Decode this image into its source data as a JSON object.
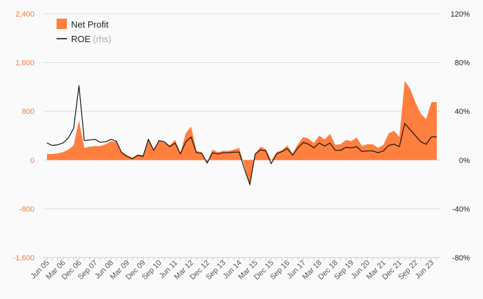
{
  "chart_data": {
    "type": "area",
    "legend": {
      "placement": "top-left",
      "net_profit": "Net Profit",
      "roe": "ROE",
      "roe_suffix": "(rhs)"
    },
    "colors": {
      "net_profit": "#ff7f3f",
      "roe": "#111111",
      "left_axis": "#f47a3a",
      "grid": "#dcdcdc"
    },
    "y_left": {
      "ylim": [
        -1600,
        2400
      ],
      "ticks": [
        -1600,
        -800,
        0,
        800,
        1600,
        2400
      ],
      "tick_labels": [
        "-1,600",
        "-800",
        "0",
        "800",
        "1,600",
        "2,400"
      ]
    },
    "y_right": {
      "ylim": [
        -80,
        120
      ],
      "ticks": [
        -80,
        -40,
        0,
        40,
        80,
        120
      ],
      "tick_labels": [
        "-80%",
        "-40%",
        "0%",
        "40%",
        "80%",
        "120%"
      ]
    },
    "x_tick_labels": [
      "Jun 05",
      "Mar 06",
      "Dec 06",
      "Sep 07",
      "Jun 08",
      "Mar 09",
      "Dec 09",
      "Sep 10",
      "Jun 11",
      "Mar 12",
      "Dec 12",
      "Sep 13",
      "Jun 14",
      "Mar 15",
      "Dec 15",
      "Sep 16",
      "Jun 17",
      "Mar 18",
      "Dec 18",
      "Sep 19",
      "Jun 20",
      "Mar 21",
      "Dec 21",
      "Sep 22",
      "Jun 23"
    ],
    "label_every": 3,
    "x": [
      "Jun 05",
      "Sep 05",
      "Dec 05",
      "Mar 06",
      "Jun 06",
      "Sep 06",
      "Dec 06",
      "Mar 07",
      "Jun 07",
      "Sep 07",
      "Dec 07",
      "Mar 08",
      "Jun 08",
      "Sep 08",
      "Dec 08",
      "Mar 09",
      "Jun 09",
      "Sep 09",
      "Dec 09",
      "Mar 10",
      "Jun 10",
      "Sep 10",
      "Dec 10",
      "Mar 11",
      "Jun 11",
      "Sep 11",
      "Dec 11",
      "Mar 12",
      "Jun 12",
      "Sep 12",
      "Dec 12",
      "Mar 13",
      "Jun 13",
      "Sep 13",
      "Dec 13",
      "Mar 14",
      "Jun 14",
      "Sep 14",
      "Dec 14",
      "Mar 15",
      "Jun 15",
      "Sep 15",
      "Dec 15",
      "Mar 16",
      "Jun 16",
      "Sep 16",
      "Dec 16",
      "Mar 17",
      "Jun 17",
      "Sep 17",
      "Dec 17",
      "Mar 18",
      "Jun 18",
      "Sep 18",
      "Dec 18",
      "Mar 19",
      "Jun 19",
      "Sep 19",
      "Dec 19",
      "Mar 20",
      "Jun 20",
      "Sep 20",
      "Dec 20",
      "Mar 21",
      "Jun 21",
      "Sep 21",
      "Dec 21",
      "Mar 22",
      "Jun 22",
      "Sep 22",
      "Dec 22",
      "Mar 23",
      "Jun 23",
      "Sep 23"
    ],
    "series": [
      {
        "name": "Net Profit",
        "axis": "left",
        "kind": "area",
        "values": [
          100,
          100,
          110,
          130,
          170,
          240,
          650,
          200,
          220,
          230,
          230,
          260,
          310,
          300,
          140,
          80,
          40,
          90,
          80,
          360,
          170,
          320,
          290,
          240,
          330,
          120,
          440,
          550,
          150,
          130,
          -40,
          170,
          130,
          150,
          150,
          170,
          200,
          -100,
          -440,
          100,
          220,
          180,
          -10,
          130,
          160,
          240,
          110,
          260,
          380,
          350,
          280,
          400,
          340,
          430,
          250,
          260,
          330,
          310,
          370,
          230,
          260,
          260,
          200,
          250,
          440,
          480,
          380,
          1300,
          1170,
          950,
          760,
          670,
          950,
          950
        ]
      },
      {
        "name": "ROE",
        "axis": "right",
        "kind": "line",
        "values": [
          14,
          12,
          12.5,
          14,
          18,
          26,
          61,
          16,
          16.5,
          17,
          14.5,
          15,
          17,
          15.5,
          6,
          3,
          1,
          4,
          3,
          17,
          8,
          16,
          15,
          11,
          14,
          5,
          15,
          19,
          6,
          5.5,
          -2.5,
          6,
          5,
          6,
          6,
          6.5,
          6.5,
          -7.5,
          -20,
          5,
          8.5,
          7.5,
          -3,
          5,
          7,
          9.5,
          4,
          10,
          14.5,
          13,
          10,
          14,
          11.5,
          14,
          8,
          8,
          10.5,
          10,
          11,
          7,
          7.5,
          7.5,
          6,
          7.5,
          12,
          13,
          11,
          30,
          25,
          20,
          15,
          13,
          19,
          19
        ]
      }
    ]
  }
}
